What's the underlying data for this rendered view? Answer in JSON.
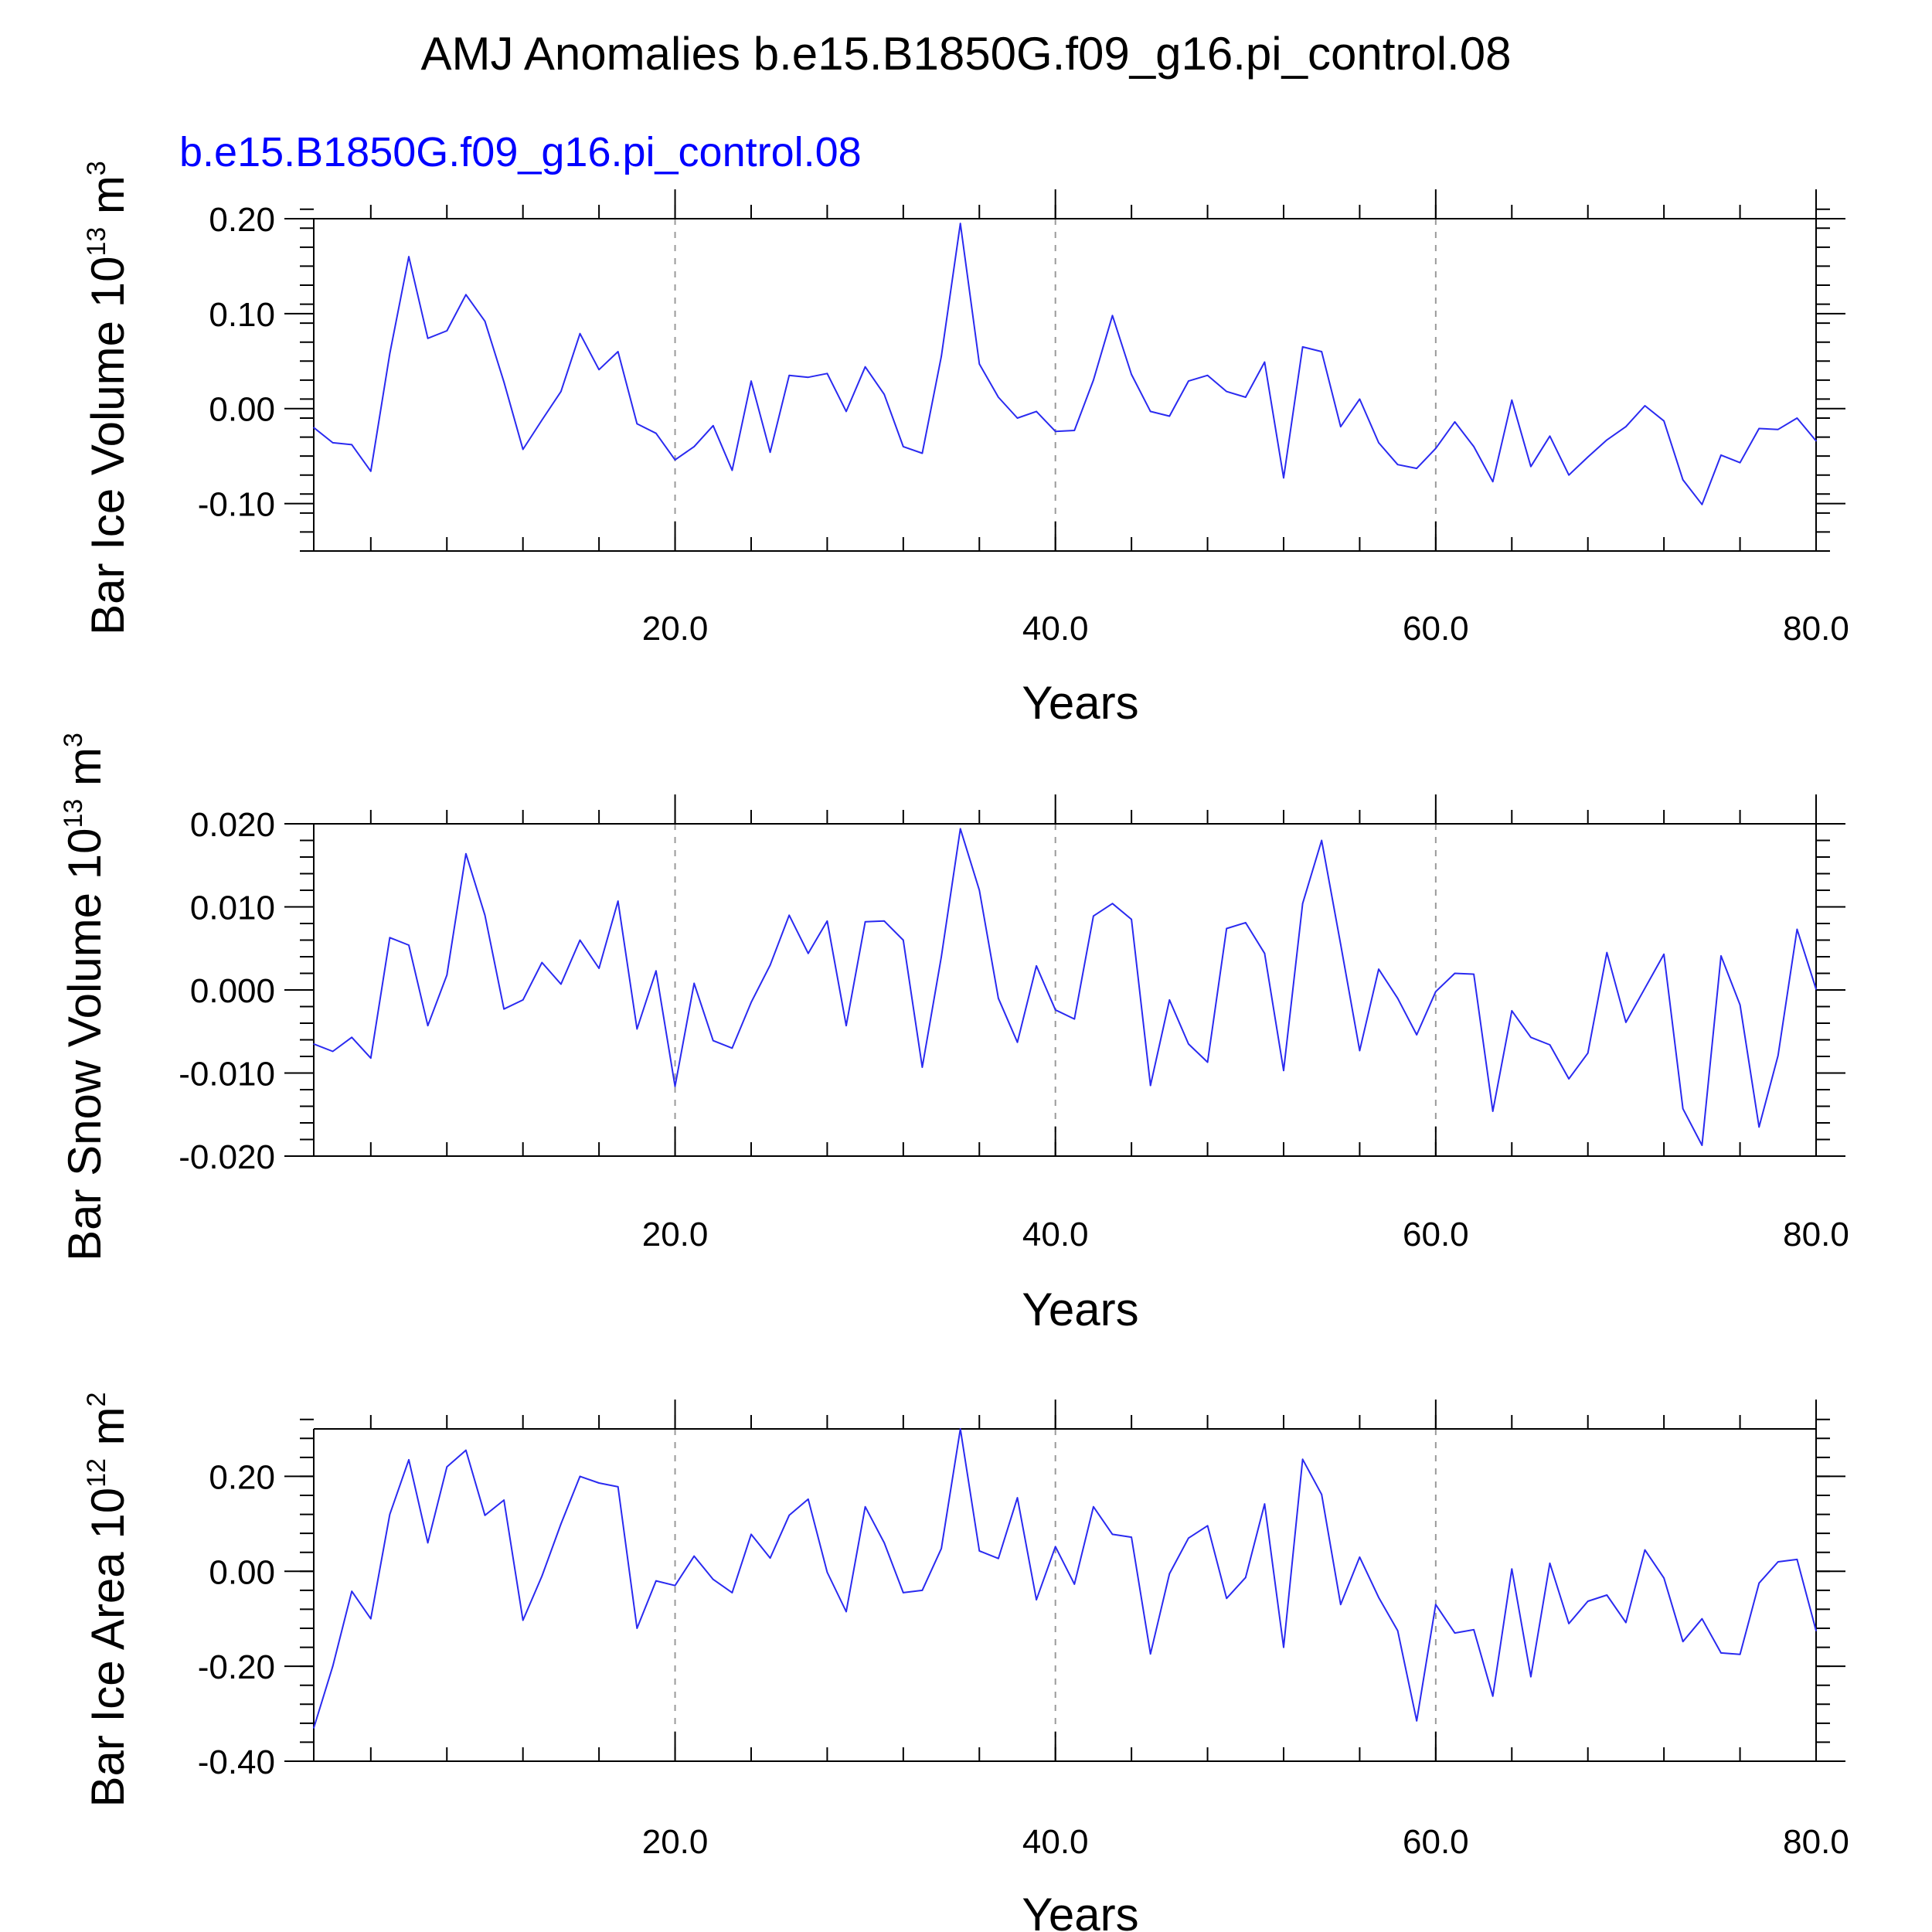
{
  "figure": {
    "title": "AMJ Anomalies b.e15.B1850G.f09_g16.pi_control.08",
    "subtitle": "b.e15.B1850G.f09_g16.pi_control.08",
    "line_color": "#2a2af0",
    "subtitle_color": "#0000ff"
  },
  "chart_data": [
    {
      "type": "line",
      "ylabel": {
        "text": "Bar Ice Volume 10",
        "sup": "13",
        "unit": " m",
        "unit_sup": "3"
      },
      "xlabel": "Years",
      "xlim": [
        1,
        80
      ],
      "ylim": [
        -0.15,
        0.2
      ],
      "yticks": [
        -0.1,
        0.0,
        0.1,
        0.2
      ],
      "ytick_labels": [
        "-0.10",
        "0.00",
        "0.10",
        "0.20"
      ],
      "yminor_step": 0.02,
      "xticks": [
        20,
        40,
        60,
        80
      ],
      "xtick_labels": [
        "20.0",
        "40.0",
        "60.0",
        "80.0"
      ],
      "xminor_step": 4,
      "grid_x": [
        20,
        40,
        60
      ],
      "series": [
        {
          "x": [
            1,
            2,
            3,
            4,
            5,
            6,
            7,
            8,
            9,
            10,
            11,
            12,
            13,
            14,
            15,
            16,
            17,
            18,
            19,
            20,
            21,
            22,
            23,
            24,
            25,
            26,
            27,
            28,
            29,
            30,
            31,
            32,
            33,
            34,
            35,
            36,
            37,
            38,
            39,
            40,
            41,
            42,
            43,
            44,
            45,
            46,
            47,
            48,
            49,
            50,
            51,
            52,
            53,
            54,
            55,
            56,
            57,
            58,
            59,
            60,
            61,
            62,
            63,
            64,
            65,
            66,
            67,
            68,
            69,
            70,
            71,
            72,
            73,
            74,
            75,
            76,
            77,
            78,
            79,
            80
          ],
          "y": [
            -0.02,
            -0.036,
            -0.038,
            -0.066,
            0.058,
            0.16,
            0.074,
            0.082,
            0.12,
            0.092,
            0.028,
            -0.043,
            -0.012,
            0.018,
            0.079,
            0.041,
            0.06,
            -0.016,
            -0.026,
            -0.054,
            -0.04,
            -0.018,
            -0.065,
            0.029,
            -0.046,
            0.035,
            0.033,
            0.037,
            -0.003,
            0.044,
            0.015,
            -0.04,
            -0.047,
            0.055,
            0.195,
            0.047,
            0.012,
            -0.01,
            -0.003,
            -0.024,
            -0.023,
            0.03,
            0.098,
            0.036,
            -0.003,
            -0.008,
            0.029,
            0.035,
            0.018,
            0.012,
            0.049,
            -0.073,
            0.065,
            0.06,
            -0.019,
            0.01,
            -0.036,
            -0.059,
            -0.063,
            -0.042,
            -0.014,
            -0.04,
            -0.077,
            0.009,
            -0.061,
            -0.029,
            -0.07,
            -0.051,
            -0.033,
            -0.019,
            0.003,
            -0.013,
            -0.075,
            -0.101,
            -0.049,
            -0.057,
            -0.021,
            -0.022,
            -0.01,
            -0.034
          ]
        }
      ]
    },
    {
      "type": "line",
      "ylabel": {
        "text": "Bar Snow Volume 10",
        "sup": "13",
        "unit": " m",
        "unit_sup": "3"
      },
      "xlabel": "Years",
      "xlim": [
        1,
        80
      ],
      "ylim": [
        -0.02,
        0.02
      ],
      "yticks": [
        -0.02,
        -0.01,
        0.0,
        0.01,
        0.02
      ],
      "ytick_labels": [
        "-0.020",
        "-0.010",
        "0.000",
        "0.010",
        "0.020"
      ],
      "yminor_step": 0.002,
      "xticks": [
        20,
        40,
        60,
        80
      ],
      "xtick_labels": [
        "20.0",
        "40.0",
        "60.0",
        "80.0"
      ],
      "xminor_step": 4,
      "grid_x": [
        20,
        40,
        60
      ],
      "series": [
        {
          "x": [
            1,
            2,
            3,
            4,
            5,
            6,
            7,
            8,
            9,
            10,
            11,
            12,
            13,
            14,
            15,
            16,
            17,
            18,
            19,
            20,
            21,
            22,
            23,
            24,
            25,
            26,
            27,
            28,
            29,
            30,
            31,
            32,
            33,
            34,
            35,
            36,
            37,
            38,
            39,
            40,
            41,
            42,
            43,
            44,
            45,
            46,
            47,
            48,
            49,
            50,
            51,
            52,
            53,
            54,
            55,
            56,
            57,
            58,
            59,
            60,
            61,
            62,
            63,
            64,
            65,
            66,
            67,
            68,
            69,
            70,
            71,
            72,
            73,
            74,
            75,
            76,
            77,
            78,
            79,
            80
          ],
          "y": [
            -0.0065,
            -0.0074,
            -0.0057,
            -0.0082,
            0.0063,
            0.0054,
            -0.0043,
            0.0018,
            0.0164,
            0.009,
            -0.0023,
            -0.0012,
            0.0033,
            0.0007,
            0.006,
            0.0026,
            0.0107,
            -0.0047,
            0.0023,
            -0.0116,
            0.0008,
            -0.0061,
            -0.007,
            -0.0015,
            0.003,
            0.009,
            0.0044,
            0.0083,
            -0.0043,
            0.0082,
            0.0083,
            0.006,
            -0.0093,
            0.004,
            0.0194,
            0.012,
            -0.001,
            -0.0063,
            0.0029,
            -0.0024,
            -0.0035,
            0.0089,
            0.0104,
            0.0085,
            -0.0115,
            -0.0012,
            -0.0065,
            -0.0087,
            0.0074,
            0.0081,
            0.0044,
            -0.0097,
            0.0104,
            0.018,
            0.0055,
            -0.0073,
            0.0025,
            -0.001,
            -0.0054,
            -0.0002,
            0.002,
            0.0019,
            -0.0146,
            -0.0025,
            -0.0057,
            -0.0066,
            -0.0107,
            -0.0076,
            0.0045,
            -0.0039,
            0.0002,
            0.0043,
            -0.0143,
            -0.0187,
            0.0041,
            -0.0018,
            -0.0165,
            -0.0079,
            0.0073,
            0.0001
          ]
        }
      ]
    },
    {
      "type": "line",
      "ylabel": {
        "text": "Bar Ice Area 10",
        "sup": "12",
        "unit": " m",
        "unit_sup": "2"
      },
      "xlabel": "Years",
      "xlim": [
        1,
        80
      ],
      "ylim": [
        -0.4,
        0.3
      ],
      "yticks": [
        -0.4,
        -0.2,
        0.0,
        0.2
      ],
      "ytick_labels": [
        "-0.40",
        "-0.20",
        "0.00",
        "0.20"
      ],
      "yminor_step": 0.04,
      "xticks": [
        20,
        40,
        60,
        80
      ],
      "xtick_labels": [
        "20.0",
        "40.0",
        "60.0",
        "80.0"
      ],
      "xminor_step": 4,
      "grid_x": [
        20,
        40,
        60
      ],
      "series": [
        {
          "x": [
            1,
            2,
            3,
            4,
            5,
            6,
            7,
            8,
            9,
            10,
            11,
            12,
            13,
            14,
            15,
            16,
            17,
            18,
            19,
            20,
            21,
            22,
            23,
            24,
            25,
            26,
            27,
            28,
            29,
            30,
            31,
            32,
            33,
            34,
            35,
            36,
            37,
            38,
            39,
            40,
            41,
            42,
            43,
            44,
            45,
            46,
            47,
            48,
            49,
            50,
            51,
            52,
            53,
            54,
            55,
            56,
            57,
            58,
            59,
            60,
            61,
            62,
            63,
            64,
            65,
            66,
            67,
            68,
            69,
            70,
            71,
            72,
            73,
            74,
            75,
            76,
            77,
            78,
            79,
            80
          ],
          "y": [
            -0.33,
            -0.2,
            -0.042,
            -0.1,
            0.12,
            0.235,
            0.06,
            0.22,
            0.255,
            0.118,
            0.15,
            -0.103,
            -0.01,
            0.1,
            0.2,
            0.186,
            0.178,
            -0.12,
            -0.02,
            -0.03,
            0.032,
            -0.017,
            -0.045,
            0.078,
            0.028,
            0.118,
            0.152,
            -0.002,
            -0.085,
            0.136,
            0.06,
            -0.045,
            -0.04,
            0.048,
            0.3,
            0.043,
            0.027,
            0.155,
            -0.06,
            0.052,
            -0.027,
            0.136,
            0.078,
            0.072,
            -0.174,
            -0.005,
            0.07,
            0.096,
            -0.057,
            -0.013,
            0.142,
            -0.16,
            0.236,
            0.162,
            -0.07,
            0.03,
            -0.055,
            -0.125,
            -0.315,
            -0.07,
            -0.13,
            -0.123,
            -0.263,
            0.005,
            -0.222,
            0.017,
            -0.11,
            -0.063,
            -0.05,
            -0.108,
            0.045,
            -0.014,
            -0.148,
            -0.1,
            -0.172,
            -0.175,
            -0.025,
            0.02,
            0.025,
            -0.125
          ]
        }
      ]
    }
  ]
}
